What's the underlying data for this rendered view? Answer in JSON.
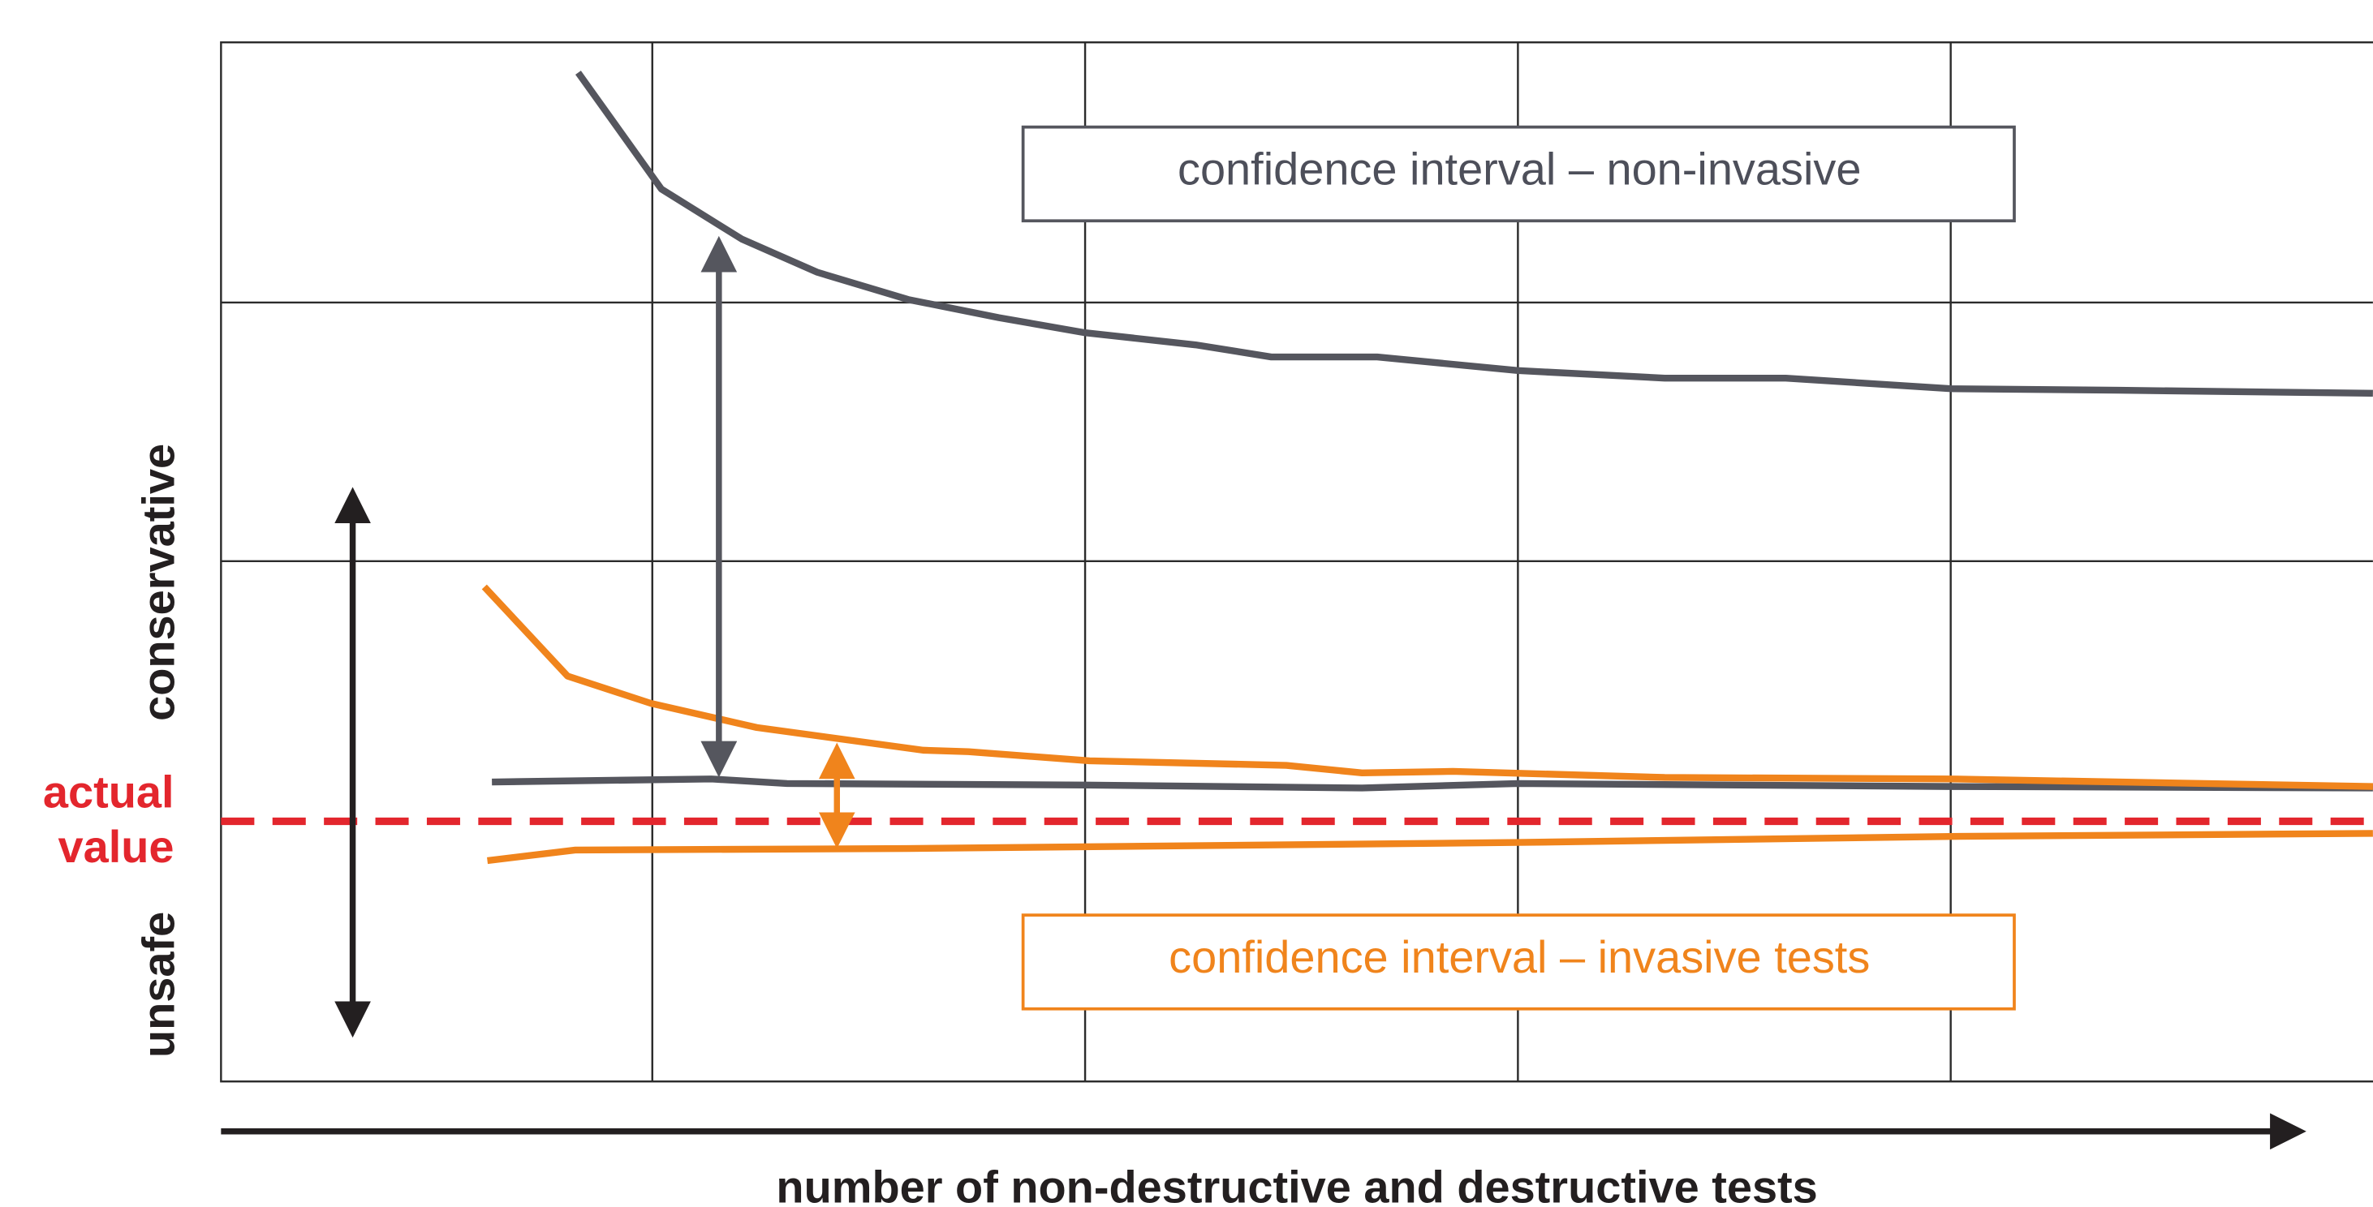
{
  "labels": {
    "conservative": "conservative",
    "actual": "actual",
    "value": "value",
    "unsafe": "unsafe"
  },
  "boxes": {
    "non_invasive": "confidence interval – non-invasive",
    "invasive": "confidence interval – invasive tests"
  },
  "x_axis_label": "number of non-destructive and destructive tests"
}
